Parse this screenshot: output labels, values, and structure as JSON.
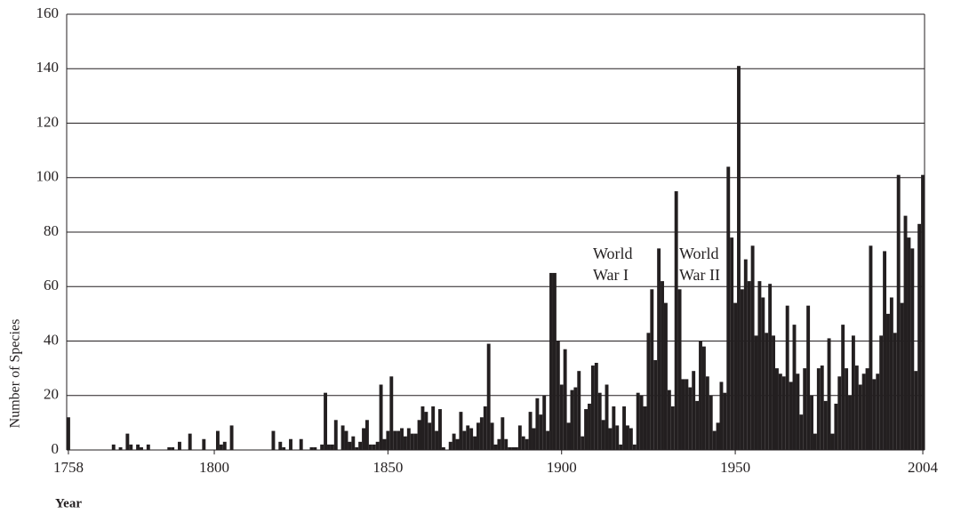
{
  "chart_data": {
    "type": "bar",
    "x_label": "Year",
    "y_label": "Number of Species",
    "annotations": [
      [
        "World",
        "War I"
      ],
      [
        "World",
        "War II"
      ]
    ],
    "color": "#231f20",
    "grid": true,
    "xlim": [
      1757.5,
      2004.5
    ],
    "xticks": [
      1758,
      1800,
      1850,
      1900,
      1950,
      2004
    ],
    "ylim": [
      0,
      160
    ],
    "yticks": [
      0,
      20,
      40,
      60,
      80,
      100,
      120,
      140,
      160
    ],
    "x": [
      1758,
      1771,
      1773,
      1775,
      1776,
      1778,
      1779,
      1781,
      1787,
      1788,
      1790,
      1793,
      1797,
      1801,
      1802,
      1803,
      1805,
      1817,
      1819,
      1820,
      1822,
      1825,
      1828,
      1829,
      1831,
      1832,
      1833,
      1834,
      1835,
      1837,
      1838,
      1839,
      1840,
      1841,
      1842,
      1843,
      1844,
      1845,
      1846,
      1847,
      1848,
      1849,
      1850,
      1851,
      1852,
      1853,
      1854,
      1855,
      1856,
      1857,
      1858,
      1859,
      1860,
      1861,
      1862,
      1863,
      1864,
      1865,
      1866,
      1868,
      1869,
      1870,
      1871,
      1872,
      1873,
      1874,
      1875,
      1876,
      1877,
      1878,
      1879,
      1880,
      1881,
      1882,
      1883,
      1884,
      1885,
      1886,
      1887,
      1888,
      1889,
      1890,
      1891,
      1892,
      1893,
      1894,
      1895,
      1896,
      1897,
      1898,
      1899,
      1900,
      1901,
      1902,
      1903,
      1904,
      1905,
      1906,
      1907,
      1908,
      1909,
      1910,
      1911,
      1912,
      1913,
      1914,
      1915,
      1916,
      1917,
      1918,
      1919,
      1920,
      1921,
      1922,
      1923,
      1924,
      1925,
      1926,
      1927,
      1928,
      1929,
      1930,
      1931,
      1932,
      1933,
      1934,
      1935,
      1936,
      1937,
      1938,
      1939,
      1940,
      1941,
      1942,
      1943,
      1944,
      1945,
      1946,
      1947,
      1948,
      1949,
      1950,
      1951,
      1952,
      1953,
      1954,
      1955,
      1956,
      1957,
      1958,
      1959,
      1960,
      1961,
      1962,
      1963,
      1964,
      1965,
      1966,
      1967,
      1968,
      1969,
      1970,
      1971,
      1972,
      1973,
      1974,
      1975,
      1976,
      1977,
      1978,
      1979,
      1980,
      1981,
      1982,
      1983,
      1984,
      1985,
      1986,
      1987,
      1988,
      1989,
      1990,
      1991,
      1992,
      1993,
      1994,
      1995,
      1996,
      1997,
      1998,
      1999,
      2000,
      2001,
      2002,
      2003,
      2004
    ],
    "values": [
      12,
      2,
      1,
      6,
      2,
      2,
      1,
      2,
      1,
      1,
      3,
      6,
      4,
      7,
      2,
      3,
      9,
      7,
      3,
      1,
      4,
      4,
      1,
      1,
      2,
      21,
      2,
      2,
      11,
      9,
      7,
      3,
      5,
      1,
      3,
      8,
      11,
      2,
      2,
      3,
      24,
      4,
      7,
      27,
      7,
      7,
      8,
      5,
      8,
      6,
      6,
      11,
      16,
      14,
      10,
      16,
      7,
      15,
      1,
      3,
      6,
      4,
      14,
      7,
      9,
      8,
      5,
      10,
      12,
      16,
      39,
      10,
      2,
      4,
      12,
      4,
      1,
      1,
      1,
      9,
      5,
      4,
      14,
      8,
      19,
      13,
      20,
      7,
      65,
      65,
      40,
      24,
      37,
      10,
      22,
      23,
      29,
      5,
      15,
      17,
      31,
      32,
      21,
      11,
      24,
      8,
      16,
      9,
      2,
      16,
      9,
      8,
      2,
      21,
      20,
      16,
      43,
      59,
      33,
      74,
      62,
      54,
      22,
      16,
      95,
      59,
      26,
      26,
      23,
      29,
      18,
      40,
      38,
      27,
      20,
      7,
      10,
      25,
      21,
      104,
      78,
      54,
      141,
      59,
      70,
      62,
      75,
      42,
      62,
      56,
      43,
      61,
      42,
      30,
      28,
      27,
      53,
      25,
      46,
      28,
      13,
      30,
      53,
      20,
      6,
      30,
      31,
      18,
      41,
      6,
      17,
      27,
      46,
      30,
      20,
      42,
      31,
      24,
      28,
      30,
      75,
      26,
      28,
      42,
      73,
      50,
      56,
      43,
      101,
      54,
      86,
      78,
      74,
      29,
      83,
      101
    ]
  }
}
